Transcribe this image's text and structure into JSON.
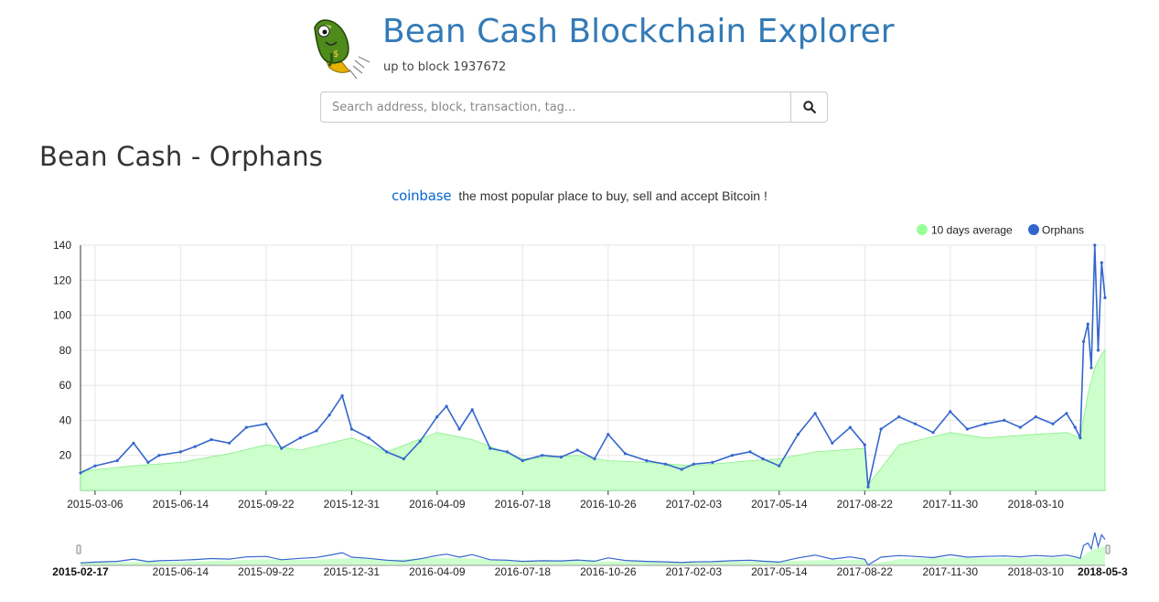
{
  "header": {
    "title": "Bean Cash Blockchain Explorer",
    "subtitle": "up to block 1937672",
    "search_placeholder": "Search address, block, transaction, tag...",
    "logo_icon": "bean-mascot-icon",
    "search_icon": "magnifier-icon"
  },
  "page": {
    "title": "Bean Cash - Orphans"
  },
  "promo": {
    "brand": "coinbase",
    "text": "the most popular place to buy, sell and accept Bitcoin !"
  },
  "colors": {
    "orphans": "#3366cc",
    "average_fill": "#ccffcc",
    "average_legend": "#99ff99",
    "title": "#337ab7"
  },
  "chart_data": {
    "type": "line",
    "legend": [
      "10 days average",
      "Orphans"
    ],
    "legend_position": "top-right",
    "grid": true,
    "ylim": [
      0,
      140
    ],
    "yticks": [
      20,
      40,
      60,
      80,
      100,
      120,
      140
    ],
    "xticks": [
      "2015-03-06",
      "2015-06-14",
      "2015-09-22",
      "2015-12-31",
      "2016-04-09",
      "2016-07-18",
      "2016-10-26",
      "2017-02-03",
      "2017-05-14",
      "2017-08-22",
      "2017-11-30",
      "2018-03-10"
    ],
    "navigator_ticks": [
      "2015-06-14",
      "2015-09-22",
      "2015-12-31",
      "2016-04-09",
      "2016-07-18",
      "2016-10-26",
      "2017-02-03",
      "2017-05-14",
      "2017-08-22",
      "2017-11-30",
      "2018-03-10"
    ],
    "range_start": "2015-02-17",
    "range_end": "2018-05-3",
    "series": [
      {
        "name": "Orphans",
        "x": [
          "2015-02-17",
          "2015-03-06",
          "2015-04-01",
          "2015-04-20",
          "2015-05-07",
          "2015-05-20",
          "2015-06-14",
          "2015-07-01",
          "2015-07-20",
          "2015-08-10",
          "2015-08-30",
          "2015-09-22",
          "2015-10-10",
          "2015-11-01",
          "2015-11-20",
          "2015-12-05",
          "2015-12-20",
          "2015-12-31",
          "2016-01-20",
          "2016-02-10",
          "2016-03-01",
          "2016-03-20",
          "2016-04-09",
          "2016-04-20",
          "2016-05-05",
          "2016-05-20",
          "2016-06-10",
          "2016-06-30",
          "2016-07-18",
          "2016-08-10",
          "2016-09-01",
          "2016-09-20",
          "2016-10-10",
          "2016-10-26",
          "2016-11-15",
          "2016-12-10",
          "2017-01-01",
          "2017-01-20",
          "2017-02-03",
          "2017-02-25",
          "2017-03-20",
          "2017-04-10",
          "2017-04-25",
          "2017-05-14",
          "2017-06-05",
          "2017-06-25",
          "2017-07-15",
          "2017-08-05",
          "2017-08-22",
          "2017-08-26",
          "2017-09-10",
          "2017-10-01",
          "2017-10-20",
          "2017-11-10",
          "2017-11-30",
          "2017-12-20",
          "2018-01-10",
          "2018-02-01",
          "2018-02-20",
          "2018-03-10",
          "2018-03-30",
          "2018-04-15",
          "2018-04-25",
          "2018-05-01",
          "2018-05-05",
          "2018-05-10",
          "2018-05-14",
          "2018-05-18",
          "2018-05-22",
          "2018-05-26",
          "2018-05-30"
        ],
        "values": [
          10,
          14,
          17,
          27,
          16,
          20,
          22,
          25,
          29,
          27,
          36,
          38,
          24,
          30,
          34,
          43,
          54,
          35,
          30,
          22,
          18,
          28,
          42,
          48,
          35,
          46,
          24,
          22,
          17,
          20,
          19,
          23,
          18,
          32,
          21,
          17,
          15,
          12,
          15,
          16,
          20,
          22,
          18,
          14,
          32,
          44,
          27,
          36,
          26,
          2,
          35,
          42,
          38,
          33,
          45,
          35,
          38,
          40,
          36,
          42,
          38,
          44,
          36,
          30,
          85,
          95,
          70,
          140,
          80,
          130,
          110
        ]
      },
      {
        "name": "10 days average",
        "x": [
          "2015-02-17",
          "2015-04-20",
          "2015-06-14",
          "2015-08-10",
          "2015-09-22",
          "2015-11-01",
          "2015-12-31",
          "2016-02-10",
          "2016-04-09",
          "2016-05-20",
          "2016-07-18",
          "2016-09-20",
          "2016-10-26",
          "2016-12-10",
          "2017-02-03",
          "2017-04-10",
          "2017-05-14",
          "2017-06-25",
          "2017-08-22",
          "2017-08-26",
          "2017-10-01",
          "2017-11-30",
          "2018-01-10",
          "2018-03-10",
          "2018-04-15",
          "2018-05-01",
          "2018-05-10",
          "2018-05-18",
          "2018-05-26",
          "2018-05-30"
        ],
        "values": [
          11,
          14,
          16,
          21,
          26,
          23,
          30,
          22,
          33,
          29,
          18,
          20,
          17,
          16,
          14,
          17,
          18,
          22,
          24,
          3,
          26,
          33,
          30,
          32,
          33,
          30,
          55,
          70,
          78,
          80
        ]
      }
    ]
  }
}
